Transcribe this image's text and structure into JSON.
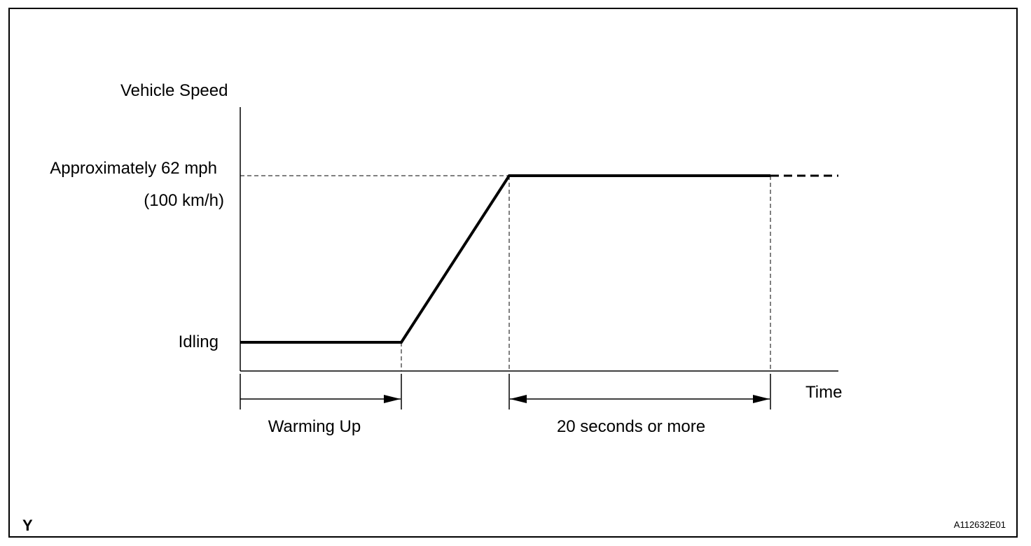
{
  "diagram": {
    "y_axis_label": "Vehicle Speed",
    "x_axis_label": "Time",
    "level_high_label": "Approximately 62 mph",
    "level_high_sub_label": "(100 km/h)",
    "level_low_label": "Idling",
    "phase_warmup_label": "Warming Up",
    "phase_hold_label": "20 seconds or more",
    "corner_mark": "Y",
    "figure_code": "A112632E01"
  },
  "colors": {
    "line": "#000000",
    "background": "#ffffff"
  }
}
